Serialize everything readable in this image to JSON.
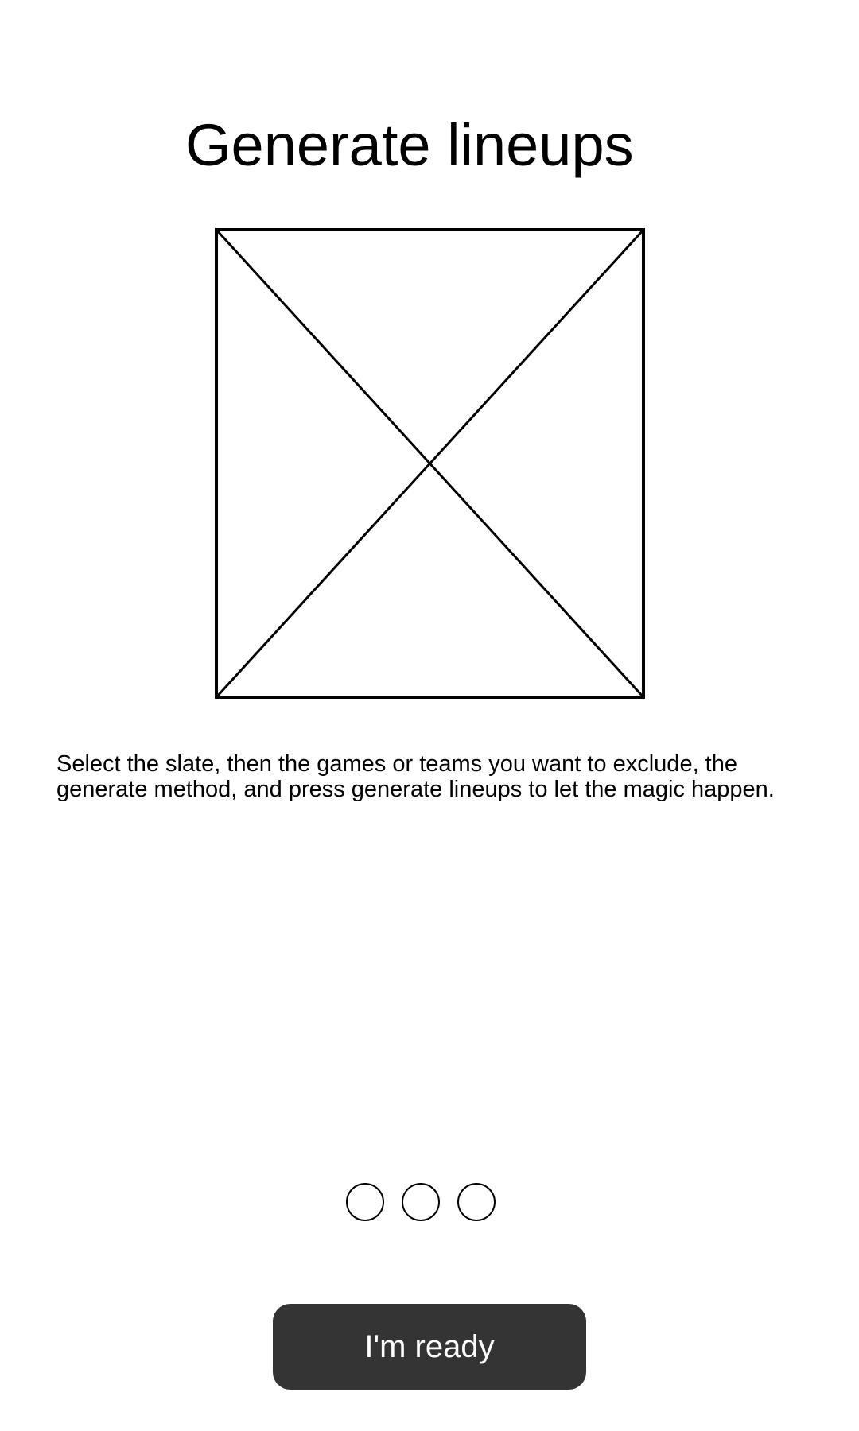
{
  "onboarding": {
    "title": "Generate lineups",
    "image": {
      "icon": "image-placeholder-icon"
    },
    "description": "Select the slate, then the games or teams you want to exclude, the generate method, and press generate lineups to let the magic happen.",
    "page_indicator": {
      "total_pages": 3,
      "current_page": null
    },
    "primary_button_label": "I'm ready",
    "colors": {
      "button_background": "#343434",
      "button_text": "#ffffff",
      "background": "#ffffff",
      "text": "#000000"
    }
  }
}
